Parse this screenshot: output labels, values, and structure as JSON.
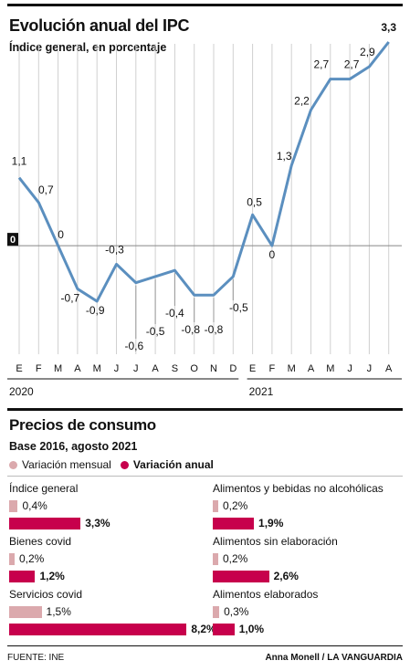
{
  "header": {
    "title": "Evolución anual del IPC",
    "subtitle": "Índice general, en porcentaje"
  },
  "chart_data": [
    {
      "type": "line",
      "title": "Evolución anual del IPC",
      "subtitle": "Índice general, en porcentaje",
      "x": [
        "E",
        "F",
        "M",
        "A",
        "M",
        "J",
        "J",
        "A",
        "S",
        "O",
        "N",
        "D",
        "E",
        "F",
        "M",
        "A",
        "M",
        "J",
        "J",
        "A"
      ],
      "year_labels": [
        "2020",
        "2021"
      ],
      "series": [
        {
          "values": [
            1.1,
            0.7,
            0,
            -0.7,
            -0.9,
            -0.3,
            -0.6,
            -0.5,
            -0.4,
            -0.8,
            -0.8,
            -0.5,
            0.5,
            0,
            1.3,
            2.2,
            2.7,
            2.7,
            2.9,
            3.3
          ]
        }
      ],
      "value_labels": [
        "1,1",
        "0,7",
        "0",
        "-0,7",
        "-0,9",
        "-0,3",
        "-0,6",
        "-0,5",
        "-0,4",
        "-0,8",
        "-0,8",
        "-0,5",
        "0,5",
        "0",
        "1,3",
        "2,2",
        "2,7",
        "2,7",
        "2,9",
        "3,3"
      ],
      "zero_label": "0",
      "ylim": [
        -1.3,
        3.3
      ],
      "line_color": "#5b8fbf"
    },
    {
      "type": "bar",
      "title": "Precios de consumo",
      "subtitle": "Base 2016, agosto 2021",
      "series_names": [
        "Variación mensual",
        "Variación anual"
      ],
      "colors": {
        "mensual": "#dba9ad",
        "anual": "#c7004c"
      },
      "categories": [
        {
          "label": "Índice general",
          "mensual": 0.4,
          "mensual_label": "0,4%",
          "anual": 3.3,
          "anual_label": "3,3%"
        },
        {
          "label": "Bienes covid",
          "mensual": 0.2,
          "mensual_label": "0,2%",
          "anual": 1.2,
          "anual_label": "1,2%"
        },
        {
          "label": "Servicios covid",
          "mensual": 1.5,
          "mensual_label": "1,5%",
          "anual": 8.2,
          "anual_label": "8,2%"
        },
        {
          "label": "Alimentos y bebidas no alcohólicas",
          "mensual": 0.2,
          "mensual_label": "0,2%",
          "anual": 1.9,
          "anual_label": "1,9%"
        },
        {
          "label": "Alimentos sin elaboración",
          "mensual": 0.2,
          "mensual_label": "0,2%",
          "anual": 2.6,
          "anual_label": "2,6%"
        },
        {
          "label": "Alimentos elaborados",
          "mensual": 0.3,
          "mensual_label": "0,3%",
          "anual": 1.0,
          "anual_label": "1,0%"
        }
      ]
    }
  ],
  "section2": {
    "title": "Precios de consumo",
    "subtitle": "Base 2016, agosto 2021",
    "legend_mensual": "Variación mensual",
    "legend_anual": "Variación anual"
  },
  "footer": {
    "source": "FUENTE: INE",
    "credit": "Anna Monell / LA VANGUARDIA"
  }
}
